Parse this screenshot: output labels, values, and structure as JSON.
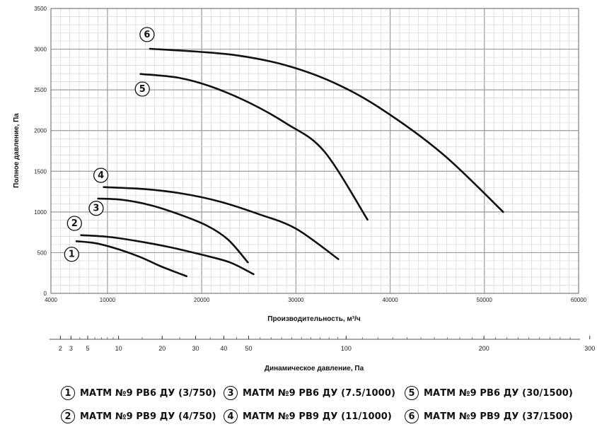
{
  "chart_data": {
    "type": "line",
    "ylabel": "Полное давление, Па",
    "xlabel": "Производительность, м³/ч",
    "x2label": "Динамическое давление, Па",
    "xlim": [
      4000,
      60000
    ],
    "ylim": [
      0,
      3500
    ],
    "x_ticks": [
      4000,
      10000,
      20000,
      30000,
      40000,
      50000,
      60000
    ],
    "y_ticks": [
      0,
      500,
      1000,
      1500,
      2000,
      2500,
      3000,
      3500
    ],
    "x2_ticks": [
      {
        "value": 2,
        "label": "2"
      },
      {
        "value": 3,
        "label": "3"
      },
      {
        "value": 5,
        "label": "5"
      },
      {
        "value": 10,
        "label": "10"
      },
      {
        "value": 20,
        "label": "20"
      },
      {
        "value": 30,
        "label": "30"
      },
      {
        "value": 40,
        "label": "40"
      },
      {
        "value": 50,
        "label": "50"
      },
      {
        "value": 100,
        "label": "100"
      },
      {
        "value": 200,
        "label": "200"
      },
      {
        "value": 300,
        "label": "300"
      }
    ],
    "grid": true,
    "series": [
      {
        "id": "1",
        "points": [
          [
            6700,
            640
          ],
          [
            8800,
            615
          ],
          [
            11200,
            540
          ],
          [
            13600,
            440
          ],
          [
            15700,
            330
          ],
          [
            18400,
            210
          ]
        ],
        "marker_at": [
          6200,
          480
        ]
      },
      {
        "id": "2",
        "points": [
          [
            7200,
            715
          ],
          [
            10000,
            695
          ],
          [
            13000,
            645
          ],
          [
            16500,
            570
          ],
          [
            20000,
            475
          ],
          [
            23000,
            380
          ],
          [
            25500,
            235
          ]
        ],
        "marker_at": [
          6500,
          860
        ]
      },
      {
        "id": "3",
        "points": [
          [
            9000,
            1165
          ],
          [
            11500,
            1150
          ],
          [
            14500,
            1085
          ],
          [
            17500,
            975
          ],
          [
            20500,
            835
          ],
          [
            22800,
            660
          ],
          [
            24900,
            380
          ]
        ],
        "marker_at": [
          8800,
          1045
        ]
      },
      {
        "id": "4",
        "points": [
          [
            9600,
            1305
          ],
          [
            14000,
            1280
          ],
          [
            18000,
            1225
          ],
          [
            22000,
            1125
          ],
          [
            26000,
            975
          ],
          [
            30000,
            795
          ],
          [
            34500,
            420
          ]
        ],
        "marker_at": [
          9300,
          1450
        ]
      },
      {
        "id": "5",
        "points": [
          [
            13500,
            2695
          ],
          [
            17500,
            2650
          ],
          [
            21000,
            2540
          ],
          [
            25000,
            2345
          ],
          [
            29000,
            2085
          ],
          [
            33000,
            1745
          ],
          [
            37600,
            905
          ]
        ],
        "marker_at": [
          13700,
          2510
        ]
      },
      {
        "id": "6",
        "points": [
          [
            14500,
            3005
          ],
          [
            19500,
            2970
          ],
          [
            24000,
            2920
          ],
          [
            29000,
            2800
          ],
          [
            34000,
            2590
          ],
          [
            39000,
            2270
          ],
          [
            45500,
            1720
          ],
          [
            52000,
            1000
          ]
        ],
        "marker_at": [
          14200,
          3180
        ]
      }
    ]
  },
  "legend": [
    {
      "num": "1",
      "label": "МАТМ №9 РВ6 ДУ (3/750)"
    },
    {
      "num": "2",
      "label": "МАТМ №9 РВ9 ДУ (4/750)"
    },
    {
      "num": "3",
      "label": "МАТМ №9 РВ6 ДУ (7.5/1000)"
    },
    {
      "num": "4",
      "label": "МАТМ №9 РВ9 ДУ (11/1000)"
    },
    {
      "num": "5",
      "label": "МАТМ №9 РВ6 ДУ (30/1500)"
    },
    {
      "num": "6",
      "label": "МАТМ №9 РВ9 ДУ (37/1500)"
    }
  ]
}
